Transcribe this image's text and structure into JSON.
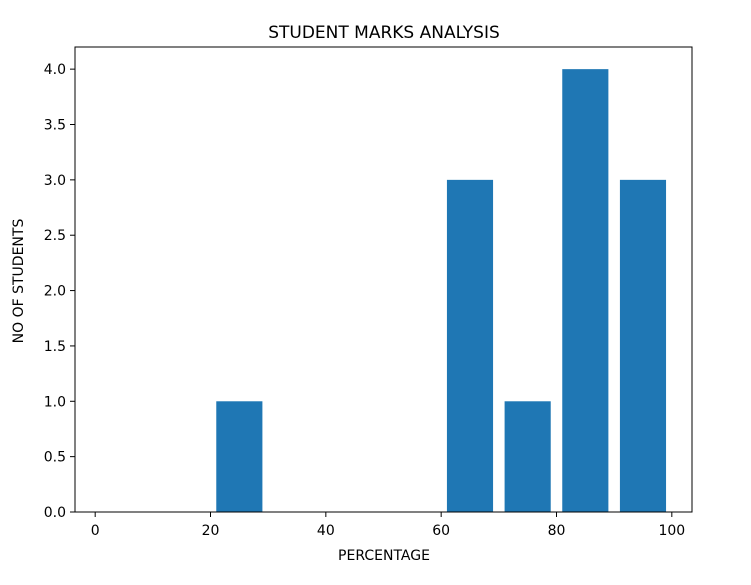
{
  "chart_data": {
    "type": "bar",
    "title": "STUDENT MARKS ANALYSIS",
    "xlabel": "PERCENTAGE",
    "ylabel": "NO OF STUDENTS",
    "bar_width": 8,
    "series": [
      {
        "x": [
          25,
          65,
          75,
          85,
          95
        ],
        "values": [
          1,
          3,
          1,
          4,
          3
        ]
      }
    ],
    "xlim": [
      -3.5,
      103.5
    ],
    "ylim": [
      0,
      4.2
    ],
    "xticks": [
      0,
      20,
      40,
      60,
      80,
      100
    ],
    "xtick_labels": [
      "0",
      "20",
      "40",
      "60",
      "80",
      "100"
    ],
    "yticks": [
      0,
      0.5,
      1,
      1.5,
      2,
      2.5,
      3,
      3.5,
      4
    ],
    "ytick_labels": [
      "0.0",
      "0.5",
      "1.0",
      "1.5",
      "2.0",
      "2.5",
      "3.0",
      "3.5",
      "4.0"
    ],
    "grid": false,
    "bar_color": "#1f77b4"
  }
}
